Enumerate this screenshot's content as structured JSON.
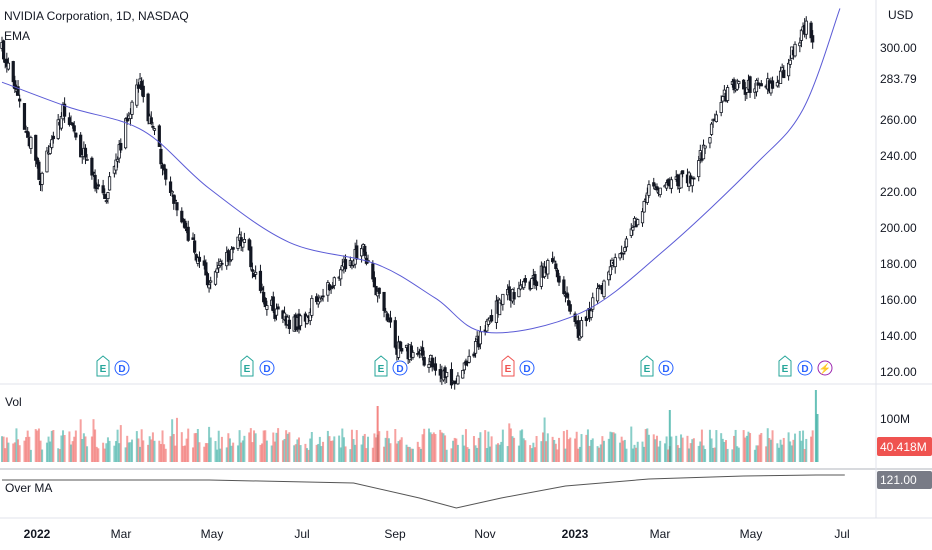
{
  "header": {
    "symbol_title": "NVIDIA Corporation, 1D, NASDAQ",
    "ema_label": "EMA"
  },
  "price_axis": {
    "currency": "USD",
    "ticks": [
      "300.00",
      "260.00",
      "240.00",
      "220.00",
      "200.00",
      "180.00",
      "160.00",
      "140.00",
      "120.00"
    ],
    "current_price_label": "283.79"
  },
  "volume_pane": {
    "label": "Vol",
    "tick": "100M",
    "current_volume_label": "40.418M"
  },
  "indicator_pane": {
    "label": "Over MA",
    "value_label": "121.00"
  },
  "time_axis": {
    "labels": [
      "2022",
      "Mar",
      "May",
      "Jul",
      "Sep",
      "Nov",
      "2023",
      "Mar",
      "May",
      "Jul"
    ]
  },
  "events": [
    "E",
    "D",
    "E",
    "D",
    "E",
    "D",
    "E",
    "D",
    "E",
    "D",
    "E",
    "D",
    "⚡"
  ],
  "colors": {
    "up_volume": "#26a69a",
    "down_volume": "#ef5350",
    "ema_line": "#5b5bd6",
    "earnings": "#26a69a",
    "earnings_miss": "#ef5350",
    "dividend": "#2962ff",
    "split": "#9c27b0",
    "price_tag_bg": "#ffffff",
    "volume_tag_bg": "#ef5350",
    "indicator_tag_bg": "#787b86"
  },
  "chart_data": {
    "type": "candlestick",
    "title": "NVIDIA Corporation, 1D, NASDAQ",
    "x_range": [
      "2022-01-03",
      "2023-05-30"
    ],
    "ylim": [
      120,
      320
    ],
    "y_unit": "USD",
    "key_closes": [
      {
        "date": "2022-01-03",
        "close": 301
      },
      {
        "date": "2022-01-27",
        "close": 228
      },
      {
        "date": "2022-02-10",
        "close": 265
      },
      {
        "date": "2022-03-08",
        "close": 215
      },
      {
        "date": "2022-03-29",
        "close": 282
      },
      {
        "date": "2022-04-20",
        "close": 215
      },
      {
        "date": "2022-05-12",
        "close": 169
      },
      {
        "date": "2022-06-02",
        "close": 195
      },
      {
        "date": "2022-06-16",
        "close": 158
      },
      {
        "date": "2022-07-05",
        "close": 146
      },
      {
        "date": "2022-08-15",
        "close": 190
      },
      {
        "date": "2022-09-06",
        "close": 134
      },
      {
        "date": "2022-09-26",
        "close": 126
      },
      {
        "date": "2022-10-13",
        "close": 115
      },
      {
        "date": "2022-11-10",
        "close": 160
      },
      {
        "date": "2022-11-30",
        "close": 170
      },
      {
        "date": "2022-12-12",
        "close": 184
      },
      {
        "date": "2022-12-28",
        "close": 141
      },
      {
        "date": "2023-01-25",
        "close": 190
      },
      {
        "date": "2023-02-10",
        "close": 220
      },
      {
        "date": "2023-03-10",
        "close": 230
      },
      {
        "date": "2023-03-31",
        "close": 277
      },
      {
        "date": "2023-05-01",
        "close": 280
      },
      {
        "date": "2023-05-19",
        "close": 313
      },
      {
        "date": "2023-05-23",
        "close": 300
      }
    ],
    "ema_points": [
      {
        "date": "2022-01-03",
        "value": 281
      },
      {
        "date": "2022-02-14",
        "value": 267
      },
      {
        "date": "2022-04-01",
        "value": 254
      },
      {
        "date": "2022-05-12",
        "value": 222
      },
      {
        "date": "2022-07-01",
        "value": 192
      },
      {
        "date": "2022-08-24",
        "value": 180
      },
      {
        "date": "2022-09-30",
        "value": 161
      },
      {
        "date": "2022-11-01",
        "value": 142
      },
      {
        "date": "2022-12-30",
        "value": 153
      },
      {
        "date": "2023-02-20",
        "value": 188
      },
      {
        "date": "2023-04-17",
        "value": 235
      },
      {
        "date": "2023-05-17",
        "value": 266
      },
      {
        "date": "2023-06-09",
        "value": 322
      }
    ],
    "current_price": 283.79,
    "current_volume_millions": 40.418,
    "over_ma_value": 121.0,
    "grid": false
  }
}
